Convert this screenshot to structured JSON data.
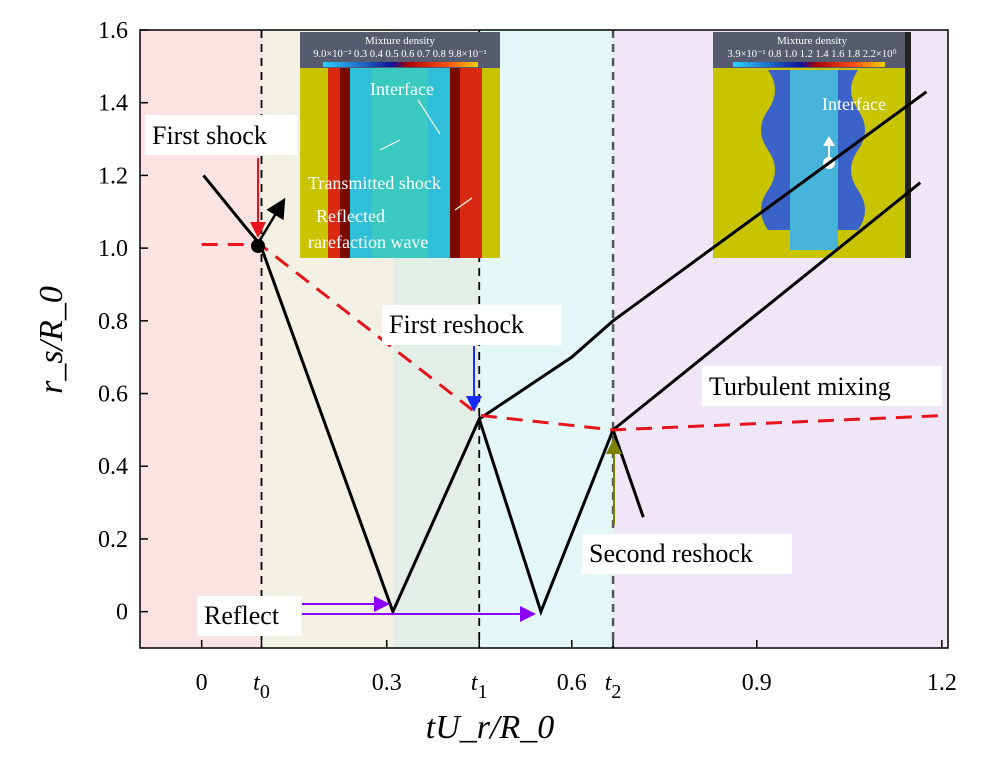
{
  "chart_data": {
    "type": "line",
    "xlabel": "tU_r/R_0",
    "ylabel": "r_s/R_0",
    "xlim": [
      -0.1,
      1.21
    ],
    "ylim": [
      -0.1,
      1.6
    ],
    "x_ticks": [
      {
        "v": 0,
        "label": "0"
      },
      {
        "v": 0.097,
        "label": "t0",
        "sub": "0"
      },
      {
        "v": 0.3,
        "label": "0.3"
      },
      {
        "v": 0.45,
        "label": "t1",
        "sub": "1"
      },
      {
        "v": 0.6,
        "label": "0.6"
      },
      {
        "v": 0.667,
        "label": "t2",
        "sub": "2"
      },
      {
        "v": 0.9,
        "label": "0.9"
      },
      {
        "v": 1.2,
        "label": "1.2"
      }
    ],
    "y_ticks": [
      "0",
      "0.2",
      "0.4",
      "0.6",
      "0.8",
      "1.0",
      "1.2",
      "1.4",
      "1.6"
    ],
    "regions": [
      {
        "from": -0.1,
        "to": 0.097,
        "color": "#fbe3e3"
      },
      {
        "from": 0.097,
        "to": 0.31,
        "color": "#f2f1e3"
      },
      {
        "from": 0.31,
        "to": 0.45,
        "color": "#e3efe6"
      },
      {
        "from": 0.45,
        "to": 0.667,
        "color": "#e2f7f6"
      },
      {
        "from": 0.667,
        "to": 1.21,
        "color": "#efe6f8"
      }
    ],
    "series": [
      {
        "style": "solid-black",
        "points": [
          [
            0.003,
            1.2
          ],
          [
            0.07,
            1.06
          ],
          [
            0.095,
            1.01
          ],
          [
            0.31,
            0
          ],
          [
            0.45,
            0.53
          ],
          [
            0.55,
            0
          ],
          [
            0.667,
            0.5
          ],
          [
            1.165,
            1.18
          ]
        ]
      },
      {
        "style": "solid-black",
        "points": [
          [
            0.45,
            0.53
          ],
          [
            0.6,
            0.7
          ],
          [
            0.667,
            0.8
          ],
          [
            1.175,
            1.43
          ]
        ]
      },
      {
        "style": "solid-black",
        "points": [
          [
            0.667,
            0.5
          ],
          [
            0.716,
            0.26
          ]
        ]
      },
      {
        "style": "dashed-red",
        "points": [
          [
            0,
            1.01
          ],
          [
            0.095,
            1.01
          ],
          [
            0.45,
            0.54
          ],
          [
            0.667,
            0.5
          ],
          [
            1.21,
            0.54
          ]
        ]
      }
    ],
    "annotations": {
      "first_shock": "First shock",
      "first_reshock": "First reshock",
      "second_reshock": "Second reshock",
      "turbulent_mixing": "Turbulent mixing",
      "reflect": "Reflect"
    },
    "inset_left": {
      "title": "Mixture density",
      "scale": "9.0×10⁻² 0.3 0.4 0.5 0.6 0.7 0.8 9.8×10⁻¹",
      "interface": "Interface",
      "transmitted": "Transmitted shock",
      "reflected1": "Reflected",
      "reflected2": "rarefaction wave"
    },
    "inset_right": {
      "title": "Mixture density",
      "scale": "3.9×10⁻¹ 0.8 1.0 1.2 1.4 1.6 1.8 2.2×10⁰",
      "interface": "Interface"
    },
    "colors": {
      "shock": "#000000",
      "interface": "#e8141b",
      "reflect_arrow": "#8b00ff",
      "reshock1_arrow": "#1a2bff",
      "reshock2_arrow": "#808000"
    }
  }
}
